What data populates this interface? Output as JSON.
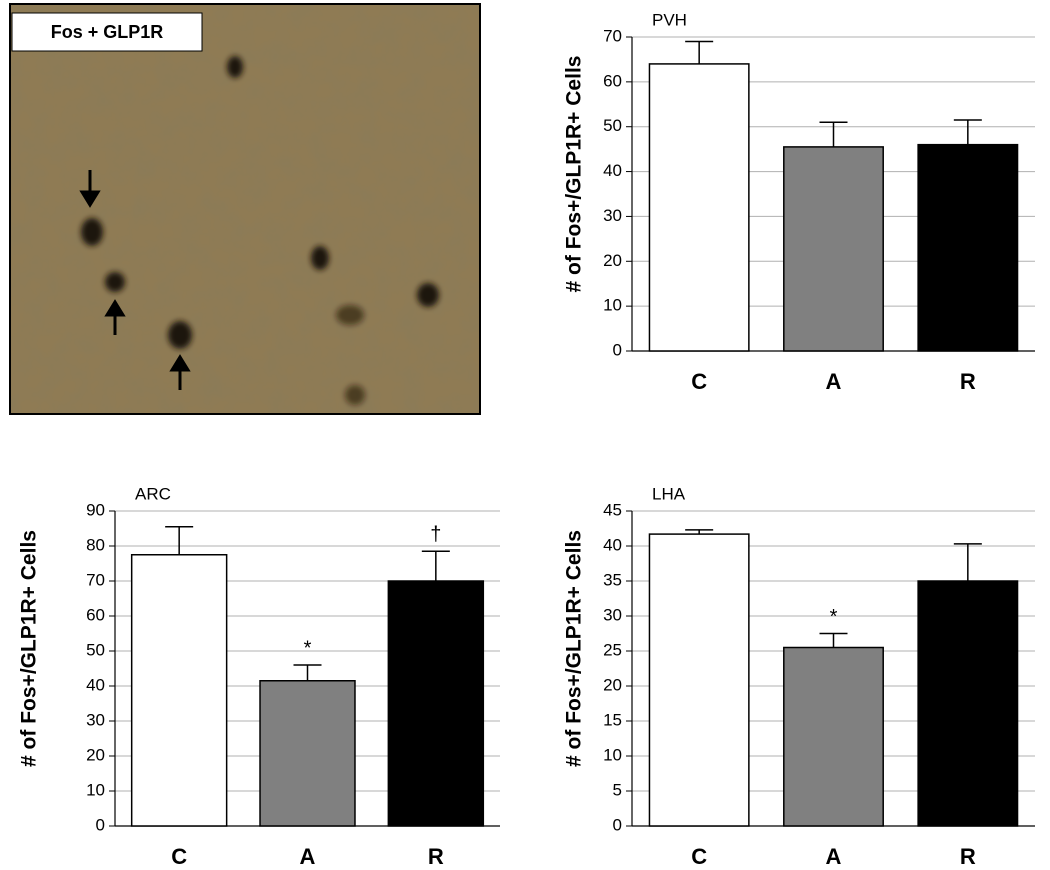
{
  "image": {
    "label": "Fos + GLP1R"
  },
  "chart_data": [
    {
      "type": "bar",
      "title": "PVH",
      "ylabel": "# of Fos+/GLP1R+ Cells",
      "categories": [
        "C",
        "A",
        "R"
      ],
      "values": [
        64,
        45.5,
        46
      ],
      "errors": [
        5,
        5.5,
        5.5
      ],
      "colors": [
        "#ffffff",
        "#808080",
        "#000000"
      ],
      "ylim": [
        0,
        70
      ],
      "yticks": [
        0,
        10,
        20,
        30,
        40,
        50,
        60,
        70
      ],
      "grid": true,
      "annotations": []
    },
    {
      "type": "bar",
      "title": "ARC",
      "ylabel": "# of Fos+/GLP1R+ Cells",
      "categories": [
        "C",
        "A",
        "R"
      ],
      "values": [
        77.5,
        41.5,
        70
      ],
      "errors": [
        8,
        4.5,
        8.5
      ],
      "colors": [
        "#ffffff",
        "#808080",
        "#000000"
      ],
      "ylim": [
        0,
        90
      ],
      "yticks": [
        0,
        10,
        20,
        30,
        40,
        50,
        60,
        70,
        80,
        90
      ],
      "grid": true,
      "annotations": [
        {
          "text": "*",
          "category": "A"
        },
        {
          "text": "†",
          "category": "R"
        }
      ]
    },
    {
      "type": "bar",
      "title": "LHA",
      "ylabel": "# of Fos+/GLP1R+ Cells",
      "categories": [
        "C",
        "A",
        "R"
      ],
      "values": [
        41.7,
        25.5,
        35
      ],
      "errors": [
        0.6,
        2,
        5.3
      ],
      "colors": [
        "#ffffff",
        "#808080",
        "#000000"
      ],
      "ylim": [
        0,
        45
      ],
      "yticks": [
        0,
        5,
        10,
        15,
        20,
        25,
        30,
        35,
        40,
        45
      ],
      "grid": true,
      "annotations": [
        {
          "text": "*",
          "category": "A"
        }
      ]
    }
  ]
}
